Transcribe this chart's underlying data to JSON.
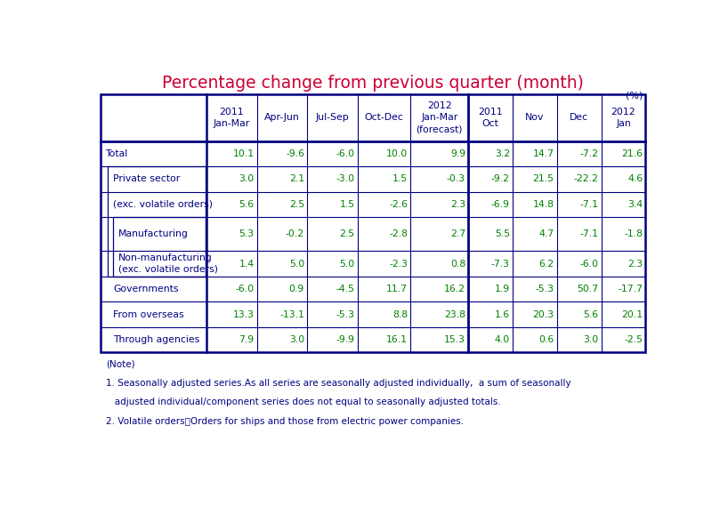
{
  "title": "Percentage change from previous quarter (month)",
  "title_color": "#cc0033",
  "unit_label": "(%)",
  "header_texts": [
    "2011\nJan-Mar",
    "Apr-Jun",
    "Jul-Sep",
    "Oct-Dec",
    "2012\nJan-Mar\n(forecast)",
    "2011\nOct",
    "Nov",
    "Dec",
    "2012\nJan"
  ],
  "row_labels": [
    "Total",
    "Private sector",
    "(exc. volatile orders)",
    "Manufacturing",
    "Non-manufacturing\n(exc. volatile orders)",
    "Governments",
    "From overseas",
    "Through agencies"
  ],
  "data": [
    [
      "10.1",
      "-9.6",
      "-6.0",
      "10.0",
      "9.9",
      "3.2",
      "14.7",
      "-7.2",
      "21.6"
    ],
    [
      "3.0",
      "2.1",
      "-3.0",
      "1.5",
      "-0.3",
      "-9.2",
      "21.5",
      "-22.2",
      "4.6"
    ],
    [
      "5.6",
      "2.5",
      "1.5",
      "-2.6",
      "2.3",
      "-6.9",
      "14.8",
      "-7.1",
      "3.4"
    ],
    [
      "5.3",
      "-0.2",
      "2.5",
      "-2.8",
      "2.7",
      "5.5",
      "4.7",
      "-7.1",
      "-1.8"
    ],
    [
      "1.4",
      "5.0",
      "5.0",
      "-2.3",
      "0.8",
      "-7.3",
      "6.2",
      "-6.0",
      "2.3"
    ],
    [
      "-6.0",
      "0.9",
      "-4.5",
      "11.7",
      "16.2",
      "1.9",
      "-5.3",
      "50.7",
      "-17.7"
    ],
    [
      "13.3",
      "-13.1",
      "-5.3",
      "8.8",
      "23.8",
      "1.6",
      "20.3",
      "5.6",
      "20.1"
    ],
    [
      "7.9",
      "3.0",
      "-9.9",
      "16.1",
      "15.3",
      "4.0",
      "0.6",
      "3.0",
      "-2.5"
    ]
  ],
  "data_color": "#008000",
  "label_color": "#000080",
  "header_color": "#000080",
  "border_color": "#000080",
  "bg_color": "#ffffff",
  "note_lines": [
    "(Note)",
    "1. Seasonally adjusted series.As all series are seasonally adjusted individually,  a sum of seasonally",
    "   adjusted individual/component series does not equal to seasonally adjusted totals.",
    "2. Volatile orders：Orders for ships and those from electric power companies."
  ],
  "note_color": "#000080"
}
